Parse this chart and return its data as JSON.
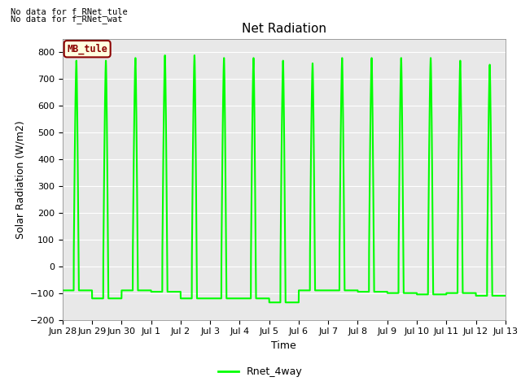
{
  "title": "Net Radiation",
  "ylabel": "Solar Radiation (W/m2)",
  "xlabel": "Time",
  "ylim": [
    -200,
    850
  ],
  "yticks": [
    -200,
    -100,
    0,
    100,
    200,
    300,
    400,
    500,
    600,
    700,
    800
  ],
  "line_color": "#00FF00",
  "line_width": 1.5,
  "background_color": "#E8E8E8",
  "figure_color": "#FFFFFF",
  "legend_label": "Rnet_4way",
  "no_data_text1": "No data for f_RNet_tule",
  "no_data_text2": "No data for f_RNet_wat",
  "box_label": "MB_tule",
  "x_tick_labels": [
    "Jun 28",
    "Jun 29",
    "Jun 30",
    "Jul 1",
    "Jul 2",
    "Jul 3",
    "Jul 4",
    "Jul 5",
    "Jul 6",
    "Jul 7",
    "Jul 8",
    "Jul 9",
    "Jul 10",
    "Jul 11",
    "Jul 12",
    "Jul 13"
  ],
  "num_days": 15,
  "title_fontsize": 11,
  "label_fontsize": 9,
  "tick_fontsize": 8,
  "peak_vals": [
    770,
    770,
    780,
    790,
    790,
    780,
    780,
    770,
    760,
    780,
    780,
    780,
    780,
    770,
    755
  ],
  "night_mins": [
    -90,
    -120,
    -90,
    -95,
    -120,
    -120,
    -120,
    -135,
    -90,
    -90,
    -95,
    -100,
    -105,
    -100,
    -110
  ]
}
